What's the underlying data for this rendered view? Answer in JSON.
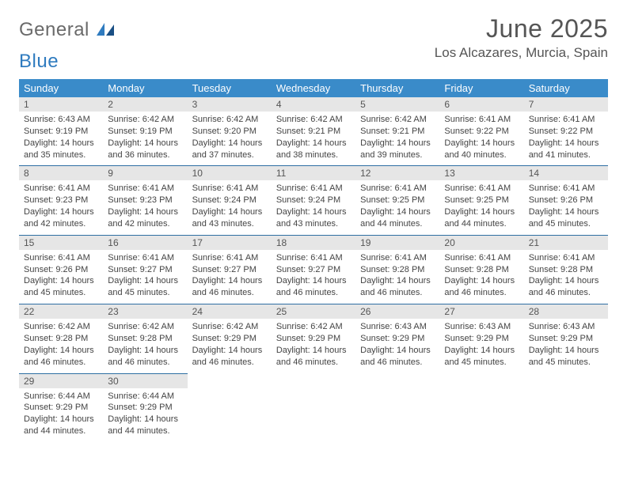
{
  "logo": {
    "general": "General",
    "blue": "Blue"
  },
  "title": "June 2025",
  "location": "Los Alcazares, Murcia, Spain",
  "colors": {
    "header_bg": "#3a8bc9",
    "header_text": "#ffffff",
    "daynum_bg": "#e6e6e6",
    "divider": "#2f6fa3",
    "text": "#444444",
    "title_text": "#555555"
  },
  "weekdays": [
    "Sunday",
    "Monday",
    "Tuesday",
    "Wednesday",
    "Thursday",
    "Friday",
    "Saturday"
  ],
  "weeks": [
    [
      {
        "n": "1",
        "sr": "6:43 AM",
        "ss": "9:19 PM",
        "dl": "14 hours and 35 minutes."
      },
      {
        "n": "2",
        "sr": "6:42 AM",
        "ss": "9:19 PM",
        "dl": "14 hours and 36 minutes."
      },
      {
        "n": "3",
        "sr": "6:42 AM",
        "ss": "9:20 PM",
        "dl": "14 hours and 37 minutes."
      },
      {
        "n": "4",
        "sr": "6:42 AM",
        "ss": "9:21 PM",
        "dl": "14 hours and 38 minutes."
      },
      {
        "n": "5",
        "sr": "6:42 AM",
        "ss": "9:21 PM",
        "dl": "14 hours and 39 minutes."
      },
      {
        "n": "6",
        "sr": "6:41 AM",
        "ss": "9:22 PM",
        "dl": "14 hours and 40 minutes."
      },
      {
        "n": "7",
        "sr": "6:41 AM",
        "ss": "9:22 PM",
        "dl": "14 hours and 41 minutes."
      }
    ],
    [
      {
        "n": "8",
        "sr": "6:41 AM",
        "ss": "9:23 PM",
        "dl": "14 hours and 42 minutes."
      },
      {
        "n": "9",
        "sr": "6:41 AM",
        "ss": "9:23 PM",
        "dl": "14 hours and 42 minutes."
      },
      {
        "n": "10",
        "sr": "6:41 AM",
        "ss": "9:24 PM",
        "dl": "14 hours and 43 minutes."
      },
      {
        "n": "11",
        "sr": "6:41 AM",
        "ss": "9:24 PM",
        "dl": "14 hours and 43 minutes."
      },
      {
        "n": "12",
        "sr": "6:41 AM",
        "ss": "9:25 PM",
        "dl": "14 hours and 44 minutes."
      },
      {
        "n": "13",
        "sr": "6:41 AM",
        "ss": "9:25 PM",
        "dl": "14 hours and 44 minutes."
      },
      {
        "n": "14",
        "sr": "6:41 AM",
        "ss": "9:26 PM",
        "dl": "14 hours and 45 minutes."
      }
    ],
    [
      {
        "n": "15",
        "sr": "6:41 AM",
        "ss": "9:26 PM",
        "dl": "14 hours and 45 minutes."
      },
      {
        "n": "16",
        "sr": "6:41 AM",
        "ss": "9:27 PM",
        "dl": "14 hours and 45 minutes."
      },
      {
        "n": "17",
        "sr": "6:41 AM",
        "ss": "9:27 PM",
        "dl": "14 hours and 46 minutes."
      },
      {
        "n": "18",
        "sr": "6:41 AM",
        "ss": "9:27 PM",
        "dl": "14 hours and 46 minutes."
      },
      {
        "n": "19",
        "sr": "6:41 AM",
        "ss": "9:28 PM",
        "dl": "14 hours and 46 minutes."
      },
      {
        "n": "20",
        "sr": "6:41 AM",
        "ss": "9:28 PM",
        "dl": "14 hours and 46 minutes."
      },
      {
        "n": "21",
        "sr": "6:41 AM",
        "ss": "9:28 PM",
        "dl": "14 hours and 46 minutes."
      }
    ],
    [
      {
        "n": "22",
        "sr": "6:42 AM",
        "ss": "9:28 PM",
        "dl": "14 hours and 46 minutes."
      },
      {
        "n": "23",
        "sr": "6:42 AM",
        "ss": "9:28 PM",
        "dl": "14 hours and 46 minutes."
      },
      {
        "n": "24",
        "sr": "6:42 AM",
        "ss": "9:29 PM",
        "dl": "14 hours and 46 minutes."
      },
      {
        "n": "25",
        "sr": "6:42 AM",
        "ss": "9:29 PM",
        "dl": "14 hours and 46 minutes."
      },
      {
        "n": "26",
        "sr": "6:43 AM",
        "ss": "9:29 PM",
        "dl": "14 hours and 46 minutes."
      },
      {
        "n": "27",
        "sr": "6:43 AM",
        "ss": "9:29 PM",
        "dl": "14 hours and 45 minutes."
      },
      {
        "n": "28",
        "sr": "6:43 AM",
        "ss": "9:29 PM",
        "dl": "14 hours and 45 minutes."
      }
    ],
    [
      {
        "n": "29",
        "sr": "6:44 AM",
        "ss": "9:29 PM",
        "dl": "14 hours and 44 minutes."
      },
      {
        "n": "30",
        "sr": "6:44 AM",
        "ss": "9:29 PM",
        "dl": "14 hours and 44 minutes."
      },
      null,
      null,
      null,
      null,
      null
    ]
  ],
  "labels": {
    "sunrise": "Sunrise: ",
    "sunset": "Sunset: ",
    "daylight": "Daylight: "
  }
}
